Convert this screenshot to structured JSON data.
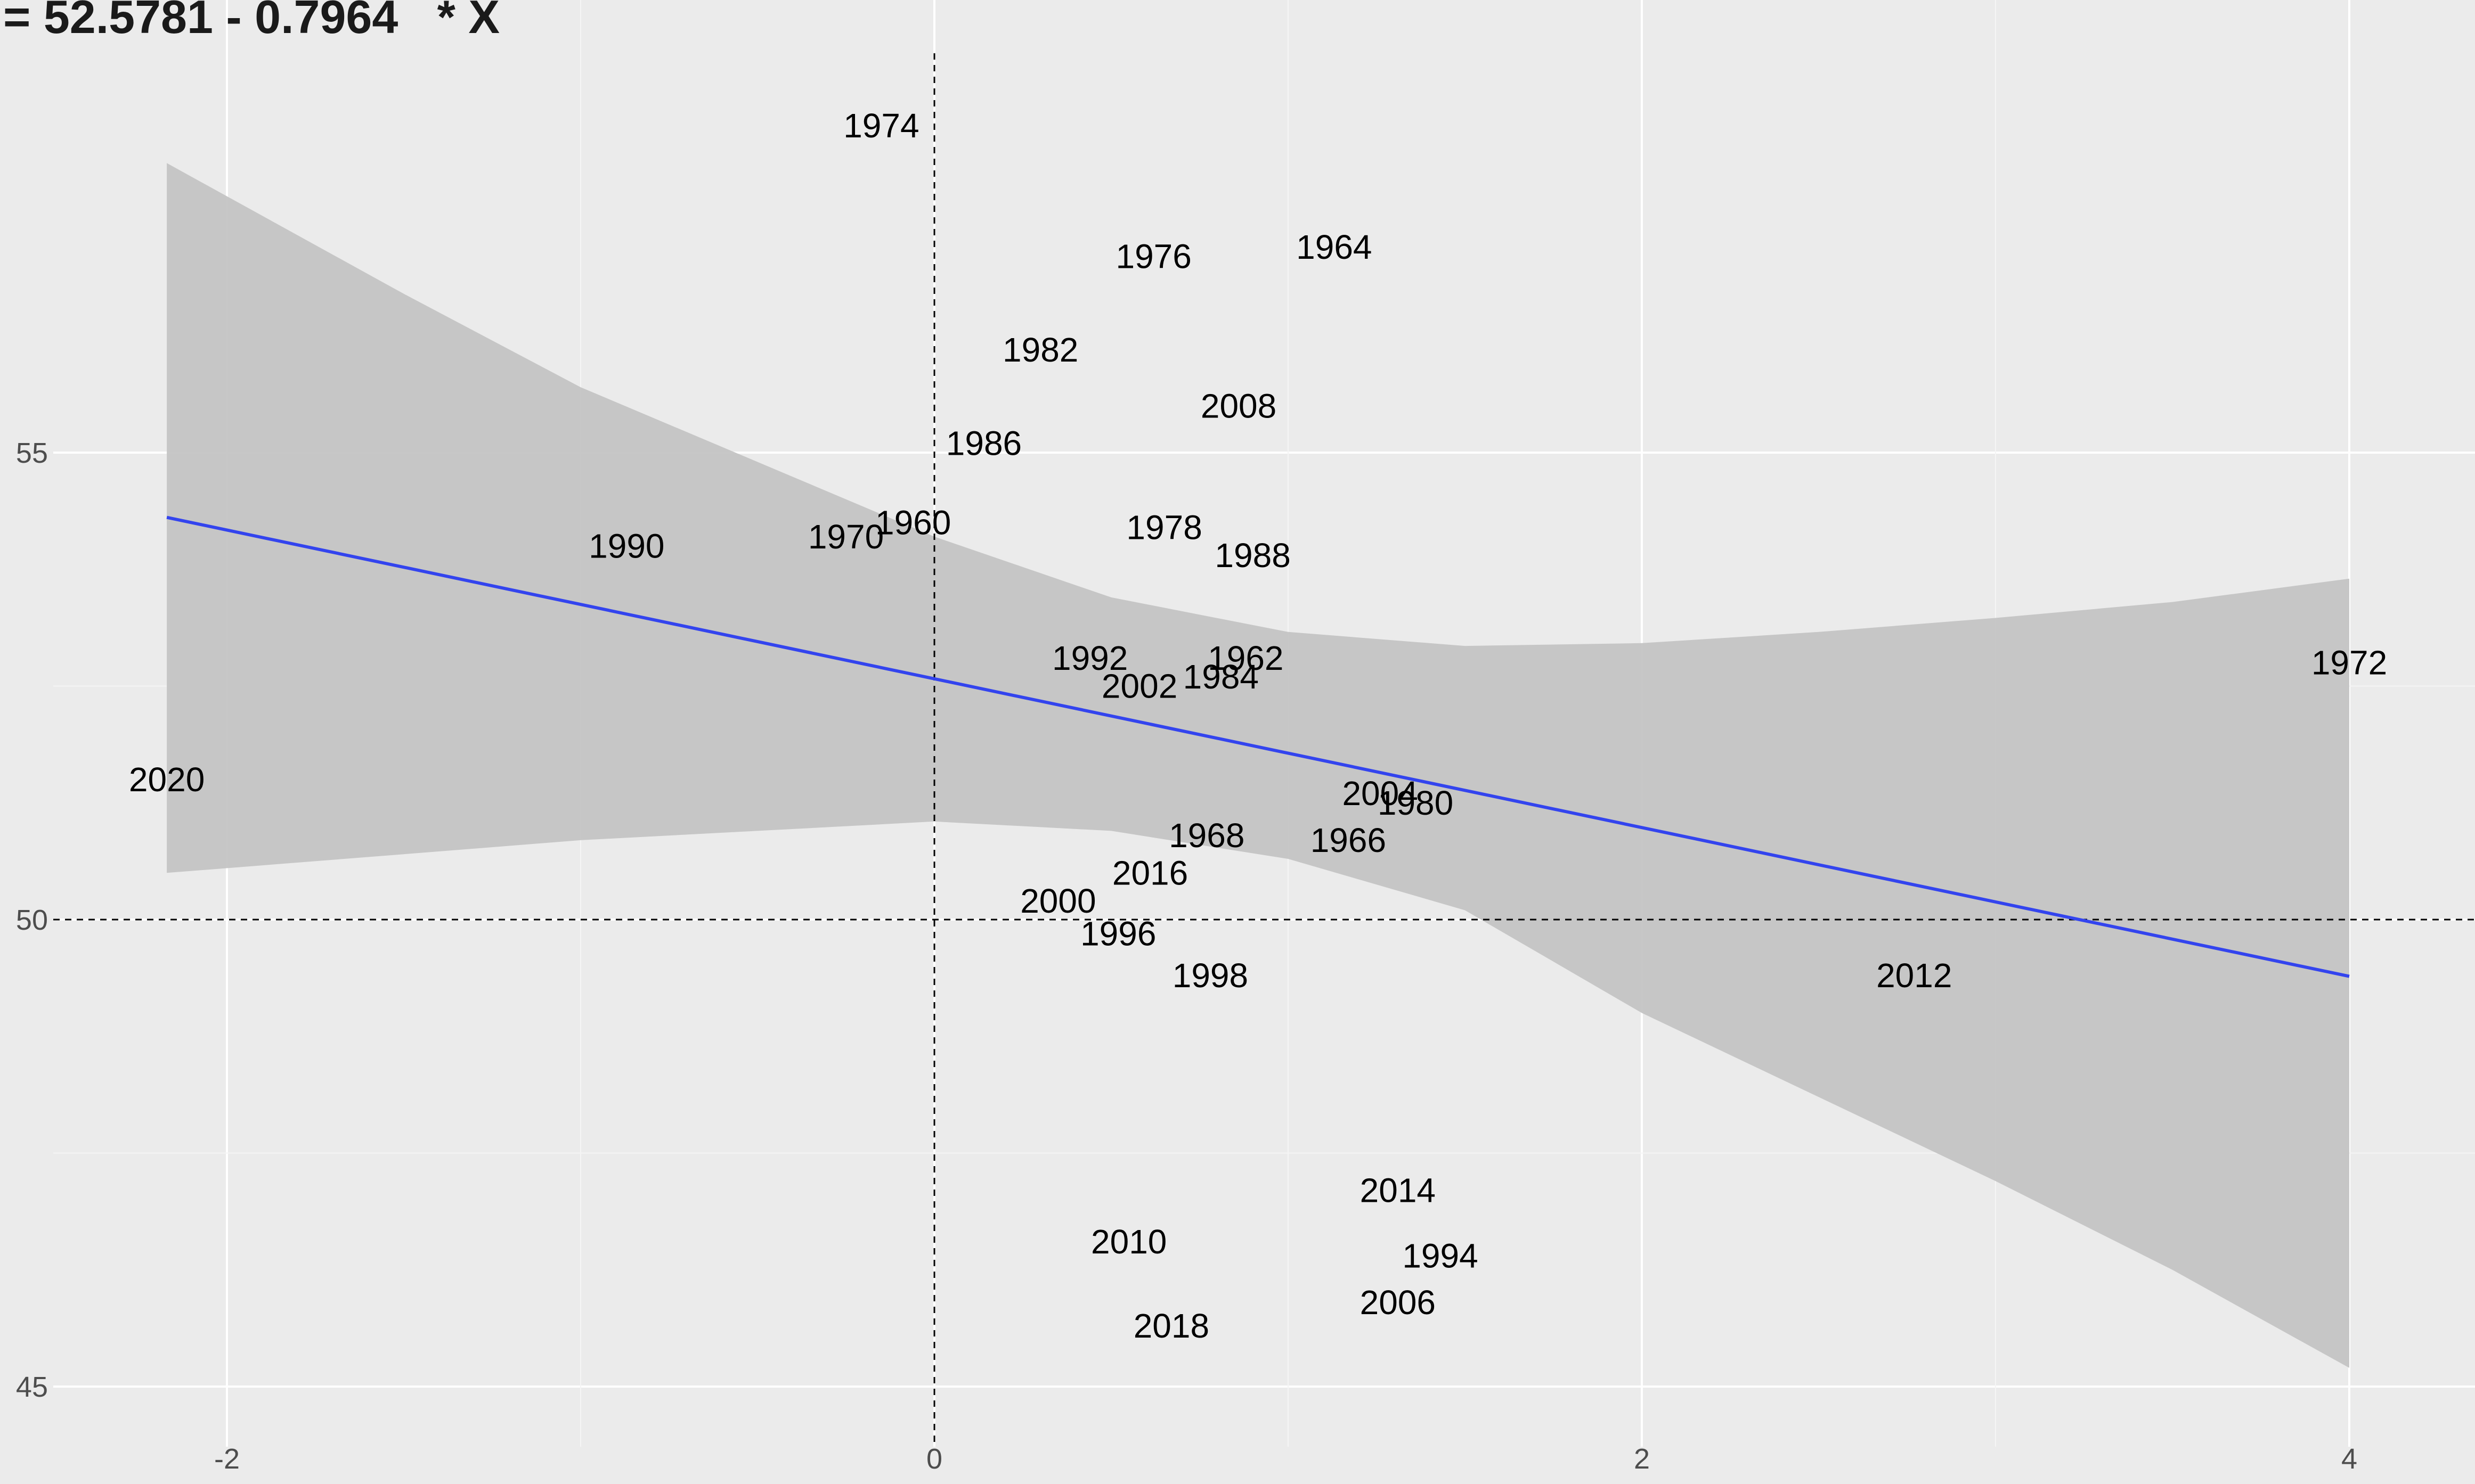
{
  "chart_data": {
    "type": "scatter",
    "title": "= 52.5781 - 0.7964   * X",
    "xlabel": "",
    "ylabel": "",
    "xlim": [
      -2.2,
      4.15
    ],
    "ylim": [
      44.2,
      59.4
    ],
    "x_ticks": [
      -2,
      0,
      2,
      4
    ],
    "y_ticks": [
      45,
      50,
      55
    ],
    "x_tick_labels": [
      "-2",
      "0",
      "2",
      "4"
    ],
    "y_tick_labels": [
      "45",
      "50",
      "55"
    ],
    "grid": true,
    "reference_lines": {
      "vertical_x": 0,
      "horizontal_y": 50,
      "style": "dashed"
    },
    "regression": {
      "intercept": 52.5781,
      "slope": -0.7964,
      "x_range": [
        -2.17,
        4.0
      ],
      "color": "#3344EE",
      "ci_band": [
        {
          "x": -2.17,
          "lower": 50.5,
          "upper": 58.1
        },
        {
          "x": -1.5,
          "lower": 50.7,
          "upper": 56.7
        },
        {
          "x": -1.0,
          "lower": 50.85,
          "upper": 55.7
        },
        {
          "x": -0.5,
          "lower": 50.95,
          "upper": 54.9
        },
        {
          "x": 0.0,
          "lower": 51.05,
          "upper": 54.1
        },
        {
          "x": 0.5,
          "lower": 50.95,
          "upper": 53.45
        },
        {
          "x": 1.0,
          "lower": 50.65,
          "upper": 53.08
        },
        {
          "x": 1.5,
          "lower": 50.1,
          "upper": 52.93
        },
        {
          "x": 2.0,
          "lower": 49.0,
          "upper": 52.96
        },
        {
          "x": 2.5,
          "lower": 48.1,
          "upper": 53.08
        },
        {
          "x": 3.0,
          "lower": 47.2,
          "upper": 53.23
        },
        {
          "x": 3.5,
          "lower": 46.25,
          "upper": 53.4
        },
        {
          "x": 4.0,
          "lower": 45.2,
          "upper": 53.65
        }
      ],
      "band_color": "#C4C4C4"
    },
    "points": [
      {
        "label": "1974",
        "x": -0.15,
        "y": 58.5
      },
      {
        "label": "1976",
        "x": 0.62,
        "y": 57.1
      },
      {
        "label": "1964",
        "x": 1.13,
        "y": 57.2
      },
      {
        "label": "1982",
        "x": 0.3,
        "y": 56.1
      },
      {
        "label": "2008",
        "x": 0.86,
        "y": 55.5
      },
      {
        "label": "1986",
        "x": 0.14,
        "y": 55.1
      },
      {
        "label": "1960",
        "x": -0.06,
        "y": 54.25
      },
      {
        "label": "1970",
        "x": -0.25,
        "y": 54.1
      },
      {
        "label": "1990",
        "x": -0.87,
        "y": 54.0
      },
      {
        "label": "1978",
        "x": 0.65,
        "y": 54.2
      },
      {
        "label": "1988",
        "x": 0.9,
        "y": 53.9
      },
      {
        "label": "1992",
        "x": 0.44,
        "y": 52.8
      },
      {
        "label": "1962",
        "x": 0.88,
        "y": 52.8
      },
      {
        "label": "1984",
        "x": 0.81,
        "y": 52.6
      },
      {
        "label": "2002",
        "x": 0.58,
        "y": 52.5
      },
      {
        "label": "1972",
        "x": 4.0,
        "y": 52.75
      },
      {
        "label": "2020",
        "x": -2.17,
        "y": 51.5
      },
      {
        "label": "2004",
        "x": 1.26,
        "y": 51.35
      },
      {
        "label": "1980",
        "x": 1.36,
        "y": 51.25
      },
      {
        "label": "1968",
        "x": 0.77,
        "y": 50.9
      },
      {
        "label": "1966",
        "x": 1.17,
        "y": 50.85
      },
      {
        "label": "2016",
        "x": 0.61,
        "y": 50.5
      },
      {
        "label": "2000",
        "x": 0.35,
        "y": 50.2
      },
      {
        "label": "1996",
        "x": 0.52,
        "y": 49.85
      },
      {
        "label": "1998",
        "x": 0.78,
        "y": 49.4
      },
      {
        "label": "2012",
        "x": 2.77,
        "y": 49.4
      },
      {
        "label": "2014",
        "x": 1.31,
        "y": 47.1
      },
      {
        "label": "2010",
        "x": 0.55,
        "y": 46.55
      },
      {
        "label": "1994",
        "x": 1.43,
        "y": 46.4
      },
      {
        "label": "2006",
        "x": 1.31,
        "y": 45.9
      },
      {
        "label": "2018",
        "x": 0.67,
        "y": 45.65
      }
    ]
  }
}
